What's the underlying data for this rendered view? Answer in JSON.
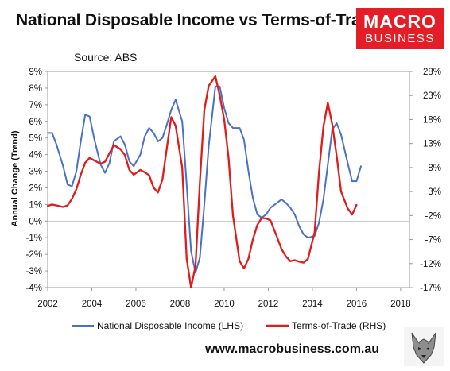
{
  "header": {
    "title": "National Disposable Income vs Terms-of-Trade",
    "source": "Source: ABS"
  },
  "logo": {
    "line1": "MACRO",
    "line2": "BUSINESS",
    "color": "#e41e26"
  },
  "footer": {
    "website": "www.macrobusiness.com.au"
  },
  "chart_data": {
    "type": "line",
    "title": "National Disposable Income vs Terms-of-Trade",
    "ylabel": "Annual Change (Trend)",
    "xlim": [
      2002,
      2018.4
    ],
    "ylim_left": [
      -4,
      9
    ],
    "ylim_right": [
      -17,
      28
    ],
    "x_ticks": [
      "2002",
      "2004",
      "2006",
      "2008",
      "2010",
      "2012",
      "2014",
      "2016",
      "2018"
    ],
    "y_ticks_left": [
      "9%",
      "8%",
      "7%",
      "6%",
      "5%",
      "4%",
      "3%",
      "2%",
      "1%",
      "0%",
      "-1%",
      "-2%",
      "-3%",
      "-4%"
    ],
    "y_ticks_right": [
      "28%",
      "23%",
      "18%",
      "13%",
      "8%",
      "3%",
      "-2%",
      "-7%",
      "-12%",
      "-17%"
    ],
    "grid": false,
    "legend_position": "bottom",
    "series": [
      {
        "name": "National Disposable Income (LHS)",
        "axis": "left",
        "color": "#4a72c4",
        "points": [
          [
            2002.0,
            5.3
          ],
          [
            2002.2,
            5.3
          ],
          [
            2002.4,
            4.6
          ],
          [
            2002.7,
            3.3
          ],
          [
            2002.9,
            2.2
          ],
          [
            2003.1,
            2.1
          ],
          [
            2003.3,
            3.0
          ],
          [
            2003.5,
            4.8
          ],
          [
            2003.7,
            6.4
          ],
          [
            2003.9,
            6.3
          ],
          [
            2004.1,
            5.0
          ],
          [
            2004.4,
            3.4
          ],
          [
            2004.6,
            2.9
          ],
          [
            2004.8,
            3.5
          ],
          [
            2005.0,
            4.8
          ],
          [
            2005.3,
            5.1
          ],
          [
            2005.5,
            4.6
          ],
          [
            2005.7,
            3.6
          ],
          [
            2005.9,
            3.3
          ],
          [
            2006.2,
            4.0
          ],
          [
            2006.4,
            5.1
          ],
          [
            2006.6,
            5.6
          ],
          [
            2006.8,
            5.3
          ],
          [
            2007.0,
            4.8
          ],
          [
            2007.2,
            5.0
          ],
          [
            2007.4,
            5.8
          ],
          [
            2007.6,
            6.7
          ],
          [
            2007.8,
            7.3
          ],
          [
            2008.1,
            6.0
          ],
          [
            2008.3,
            2.2
          ],
          [
            2008.5,
            -1.8
          ],
          [
            2008.7,
            -3.1
          ],
          [
            2008.9,
            -2.2
          ],
          [
            2009.1,
            1.0
          ],
          [
            2009.3,
            4.5
          ],
          [
            2009.6,
            8.1
          ],
          [
            2009.8,
            8.1
          ],
          [
            2010.0,
            6.8
          ],
          [
            2010.2,
            5.9
          ],
          [
            2010.4,
            5.6
          ],
          [
            2010.7,
            5.6
          ],
          [
            2010.9,
            4.9
          ],
          [
            2011.1,
            3.0
          ],
          [
            2011.3,
            1.4
          ],
          [
            2011.5,
            0.4
          ],
          [
            2011.7,
            0.2
          ],
          [
            2011.9,
            0.4
          ],
          [
            2012.1,
            0.8
          ],
          [
            2012.4,
            1.1
          ],
          [
            2012.6,
            1.3
          ],
          [
            2012.8,
            1.1
          ],
          [
            2013.0,
            0.8
          ],
          [
            2013.2,
            0.4
          ],
          [
            2013.4,
            -0.3
          ],
          [
            2013.6,
            -0.8
          ],
          [
            2013.8,
            -1.0
          ],
          [
            2014.1,
            -0.9
          ],
          [
            2014.3,
            -0.1
          ],
          [
            2014.5,
            1.3
          ],
          [
            2014.7,
            3.4
          ],
          [
            2014.9,
            5.5
          ],
          [
            2015.1,
            5.9
          ],
          [
            2015.3,
            5.2
          ],
          [
            2015.6,
            3.5
          ],
          [
            2015.8,
            2.4
          ],
          [
            2016.0,
            2.4
          ],
          [
            2016.2,
            3.3
          ]
        ]
      },
      {
        "name": "Terms-of-Trade (RHS)",
        "axis": "right",
        "color": "#e01b1b",
        "points": [
          [
            2002.0,
            0.0
          ],
          [
            2002.2,
            0.3
          ],
          [
            2002.4,
            0.1
          ],
          [
            2002.7,
            -0.2
          ],
          [
            2002.9,
            0.1
          ],
          [
            2003.1,
            1.5
          ],
          [
            2003.3,
            3.5
          ],
          [
            2003.5,
            6.5
          ],
          [
            2003.7,
            9.0
          ],
          [
            2003.9,
            10.0
          ],
          [
            2004.1,
            9.5
          ],
          [
            2004.4,
            8.8
          ],
          [
            2004.6,
            9.2
          ],
          [
            2004.8,
            11.0
          ],
          [
            2005.0,
            12.7
          ],
          [
            2005.3,
            11.8
          ],
          [
            2005.5,
            10.6
          ],
          [
            2005.7,
            7.5
          ],
          [
            2005.9,
            6.5
          ],
          [
            2006.2,
            7.5
          ],
          [
            2006.4,
            7.0
          ],
          [
            2006.6,
            6.4
          ],
          [
            2006.8,
            3.8
          ],
          [
            2007.0,
            2.8
          ],
          [
            2007.2,
            5.5
          ],
          [
            2007.4,
            12.0
          ],
          [
            2007.6,
            18.5
          ],
          [
            2007.8,
            16.7
          ],
          [
            2008.1,
            8.0
          ],
          [
            2008.3,
            -11.0
          ],
          [
            2008.5,
            -17.0
          ],
          [
            2008.7,
            -12.5
          ],
          [
            2008.9,
            5.0
          ],
          [
            2009.1,
            20.0
          ],
          [
            2009.3,
            25.0
          ],
          [
            2009.6,
            27.0
          ],
          [
            2009.8,
            23.0
          ],
          [
            2010.0,
            18.0
          ],
          [
            2010.2,
            10.0
          ],
          [
            2010.4,
            -2.0
          ],
          [
            2010.7,
            -11.5
          ],
          [
            2010.9,
            -13.0
          ],
          [
            2011.1,
            -11.0
          ],
          [
            2011.3,
            -7.0
          ],
          [
            2011.5,
            -4.0
          ],
          [
            2011.7,
            -2.5
          ],
          [
            2011.9,
            -2.6
          ],
          [
            2012.1,
            -3.0
          ],
          [
            2012.4,
            -6.5
          ],
          [
            2012.6,
            -9.0
          ],
          [
            2012.8,
            -10.5
          ],
          [
            2013.0,
            -11.5
          ],
          [
            2013.2,
            -11.3
          ],
          [
            2013.4,
            -11.6
          ],
          [
            2013.6,
            -11.8
          ],
          [
            2013.8,
            -11.0
          ],
          [
            2014.1,
            -5.5
          ],
          [
            2014.3,
            7.0
          ],
          [
            2014.5,
            16.5
          ],
          [
            2014.7,
            21.5
          ],
          [
            2014.9,
            17.0
          ],
          [
            2015.1,
            10.5
          ],
          [
            2015.3,
            3.0
          ],
          [
            2015.6,
            -0.5
          ],
          [
            2015.8,
            -1.8
          ],
          [
            2016.0,
            0.2
          ]
        ]
      }
    ]
  }
}
